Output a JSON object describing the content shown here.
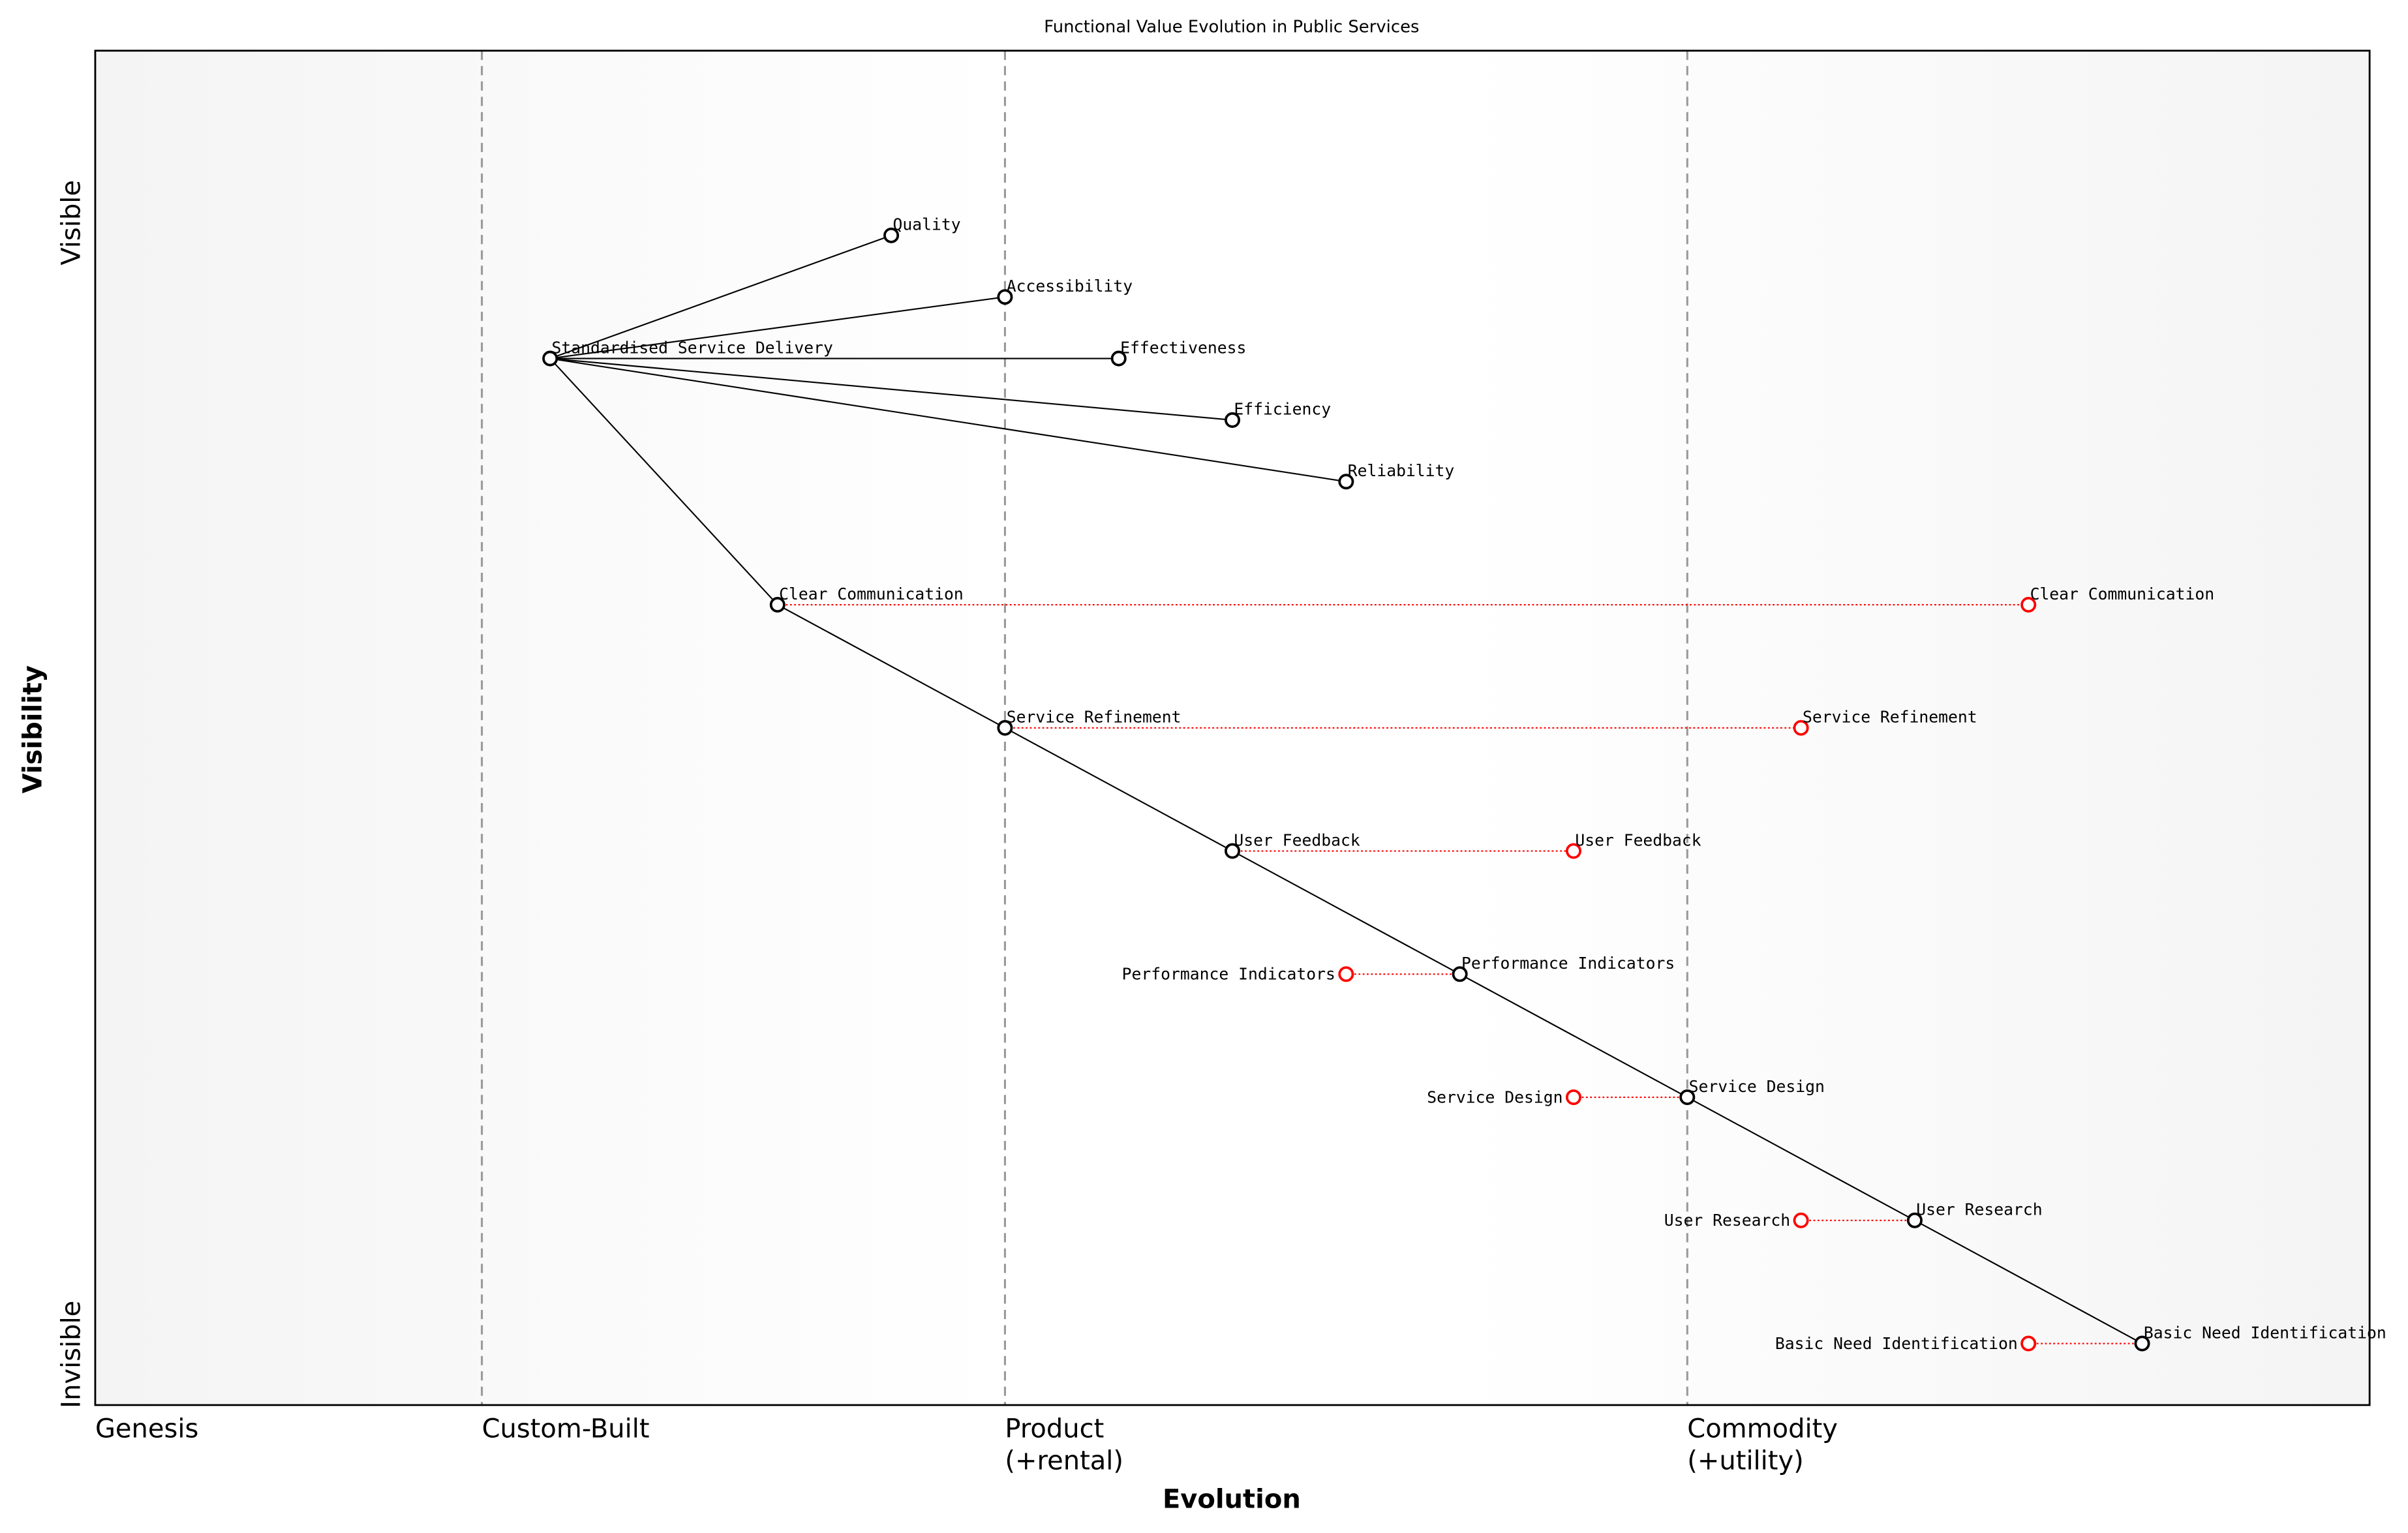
{
  "chart_data": {
    "type": "scatter",
    "title": "Functional Value Evolution in Public Services",
    "xlabel": "Evolution",
    "ylabel": "Visibility",
    "xlim": [
      0,
      1
    ],
    "ylim": [
      0,
      1.1
    ],
    "y_top_label": "Visible",
    "y_bottom_label": "Invisible",
    "stages": [
      {
        "label": "Genesis",
        "x": 0.0,
        "line": false
      },
      {
        "label": "Custom-Built",
        "x": 0.17,
        "line": true
      },
      {
        "label": "Product",
        "sub": "(+rental)",
        "x": 0.4,
        "line": true
      },
      {
        "label": "Commodity",
        "sub": "(+utility)",
        "x": 0.7,
        "line": true
      }
    ],
    "components": [
      {
        "name": "Standardised Service Delivery",
        "evolution": 0.2,
        "visibility": 0.85
      },
      {
        "name": "Quality",
        "evolution": 0.35,
        "visibility": 0.95
      },
      {
        "name": "Accessibility",
        "evolution": 0.4,
        "visibility": 0.9
      },
      {
        "name": "Effectiveness",
        "evolution": 0.45,
        "visibility": 0.85
      },
      {
        "name": "Efficiency",
        "evolution": 0.5,
        "visibility": 0.8
      },
      {
        "name": "Reliability",
        "evolution": 0.55,
        "visibility": 0.75
      },
      {
        "name": "Clear Communication",
        "evolution": 0.3,
        "visibility": 0.65
      },
      {
        "name": "Service Refinement",
        "evolution": 0.4,
        "visibility": 0.55
      },
      {
        "name": "User Feedback",
        "evolution": 0.5,
        "visibility": 0.45
      },
      {
        "name": "Performance Indicators",
        "evolution": 0.6,
        "visibility": 0.35
      },
      {
        "name": "Service Design",
        "evolution": 0.7,
        "visibility": 0.25
      },
      {
        "name": "User Research",
        "evolution": 0.8,
        "visibility": 0.15
      },
      {
        "name": "Basic Need Identification",
        "evolution": 0.9,
        "visibility": 0.05
      }
    ],
    "links": [
      [
        "Standardised Service Delivery",
        "Quality"
      ],
      [
        "Standardised Service Delivery",
        "Accessibility"
      ],
      [
        "Standardised Service Delivery",
        "Effectiveness"
      ],
      [
        "Standardised Service Delivery",
        "Efficiency"
      ],
      [
        "Standardised Service Delivery",
        "Reliability"
      ],
      [
        "Standardised Service Delivery",
        "Clear Communication"
      ],
      [
        "Clear Communication",
        "Service Refinement"
      ],
      [
        "Service Refinement",
        "User Feedback"
      ],
      [
        "User Feedback",
        "Performance Indicators"
      ],
      [
        "Performance Indicators",
        "Service Design"
      ],
      [
        "Service Design",
        "User Research"
      ],
      [
        "User Research",
        "Basic Need Identification"
      ]
    ],
    "evolutions": [
      {
        "name": "Clear Communication",
        "to": 0.85
      },
      {
        "name": "Service Refinement",
        "to": 0.75
      },
      {
        "name": "User Feedback",
        "to": 0.65
      },
      {
        "name": "Performance Indicators",
        "to": 0.55
      },
      {
        "name": "Service Design",
        "to": 0.65
      },
      {
        "name": "User Research",
        "to": 0.75
      },
      {
        "name": "Basic Need Identification",
        "to": 0.85
      }
    ],
    "colors": {
      "component": "#000000",
      "evolved": "#ff0000",
      "stage_line": "#999999"
    }
  }
}
